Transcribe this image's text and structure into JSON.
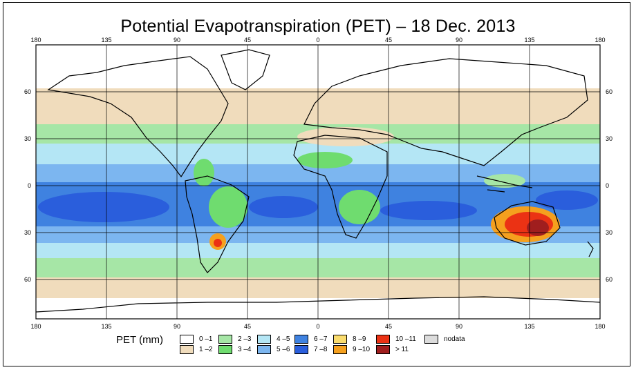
{
  "title": "Potential Evapotranspiration (PET) – 18 Dec. 2013",
  "axes": {
    "lon_labels": [
      "180",
      "135",
      "90",
      "45",
      "0",
      "45",
      "90",
      "135",
      "180"
    ],
    "lat_labels": [
      "60",
      "30",
      "0",
      "30",
      "60"
    ]
  },
  "legend": {
    "title": "PET (mm)",
    "items": [
      {
        "label": "0 –1",
        "color": "#ffffff"
      },
      {
        "label": "1 –2",
        "color": "#f0dcbc"
      },
      {
        "label": "2 –3",
        "color": "#a6e6a6"
      },
      {
        "label": "3 –4",
        "color": "#6fdc6f"
      },
      {
        "label": "4 –5",
        "color": "#b4e6f5"
      },
      {
        "label": "5 –6",
        "color": "#7cb6f0"
      },
      {
        "label": "6 –7",
        "color": "#3f82e0"
      },
      {
        "label": "7 –8",
        "color": "#2a5edc"
      },
      {
        "label": "8 –9",
        "color": "#fadc6e"
      },
      {
        "label": "9 –10",
        "color": "#f5a01e"
      },
      {
        "label": "10 –11",
        "color": "#eb3214"
      },
      {
        "label": "> 11",
        "color": "#a01e1e"
      },
      {
        "label": "nodata",
        "color": "#dcdcdc"
      }
    ]
  }
}
